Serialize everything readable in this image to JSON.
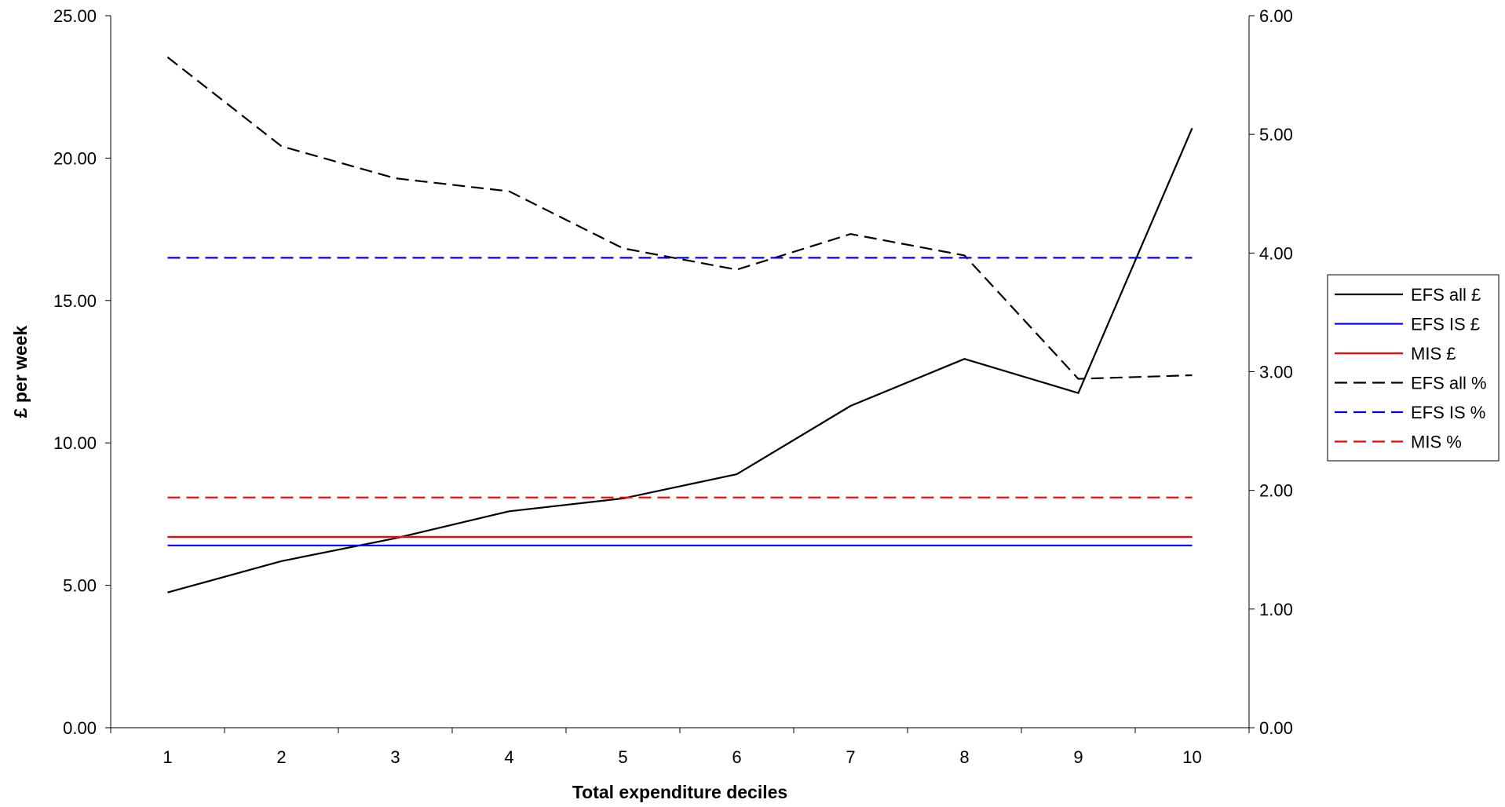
{
  "chart_data": {
    "type": "line",
    "xlabel": "Total expenditure deciles",
    "ylabel": "£ per week",
    "y2label": "",
    "categories": [
      "1",
      "2",
      "3",
      "4",
      "5",
      "6",
      "7",
      "8",
      "9",
      "10"
    ],
    "ylim": [
      0,
      25
    ],
    "y2lim": [
      0,
      6
    ],
    "yticks": [
      "0.00",
      "5.00",
      "10.00",
      "15.00",
      "20.00",
      "25.00"
    ],
    "y2ticks": [
      "0.00",
      "1.00",
      "2.00",
      "3.00",
      "4.00",
      "5.00",
      "6.00"
    ],
    "grid": false,
    "legend_position": "right",
    "series": [
      {
        "name": "EFS all £",
        "axis": "left",
        "color": "#000000",
        "dash": "solid",
        "values": [
          4.75,
          5.85,
          6.65,
          7.6,
          8.05,
          8.9,
          11.3,
          12.95,
          11.75,
          21.05
        ]
      },
      {
        "name": "EFS IS £",
        "axis": "left",
        "color": "#0000ff",
        "dash": "solid",
        "values": [
          6.4,
          6.4,
          6.4,
          6.4,
          6.4,
          6.4,
          6.4,
          6.4,
          6.4,
          6.4
        ]
      },
      {
        "name": "MIS £",
        "axis": "left",
        "color": "#ff0000",
        "dash": "solid",
        "values": [
          6.7,
          6.7,
          6.7,
          6.7,
          6.7,
          6.7,
          6.7,
          6.7,
          6.7,
          6.7
        ]
      },
      {
        "name": "EFS all %",
        "axis": "right",
        "color": "#000000",
        "dash": "dashed",
        "values": [
          5.65,
          4.9,
          4.63,
          4.52,
          4.04,
          3.86,
          4.16,
          3.98,
          2.94,
          2.97
        ]
      },
      {
        "name": "EFS IS %",
        "axis": "right",
        "color": "#0000ff",
        "dash": "dashed",
        "values": [
          3.96,
          3.96,
          3.96,
          3.96,
          3.96,
          3.96,
          3.96,
          3.96,
          3.96,
          3.96
        ]
      },
      {
        "name": "MIS %",
        "axis": "right",
        "color": "#ff0000",
        "dash": "dashed",
        "values": [
          1.94,
          1.94,
          1.94,
          1.94,
          1.94,
          1.94,
          1.94,
          1.94,
          1.94,
          1.94
        ]
      }
    ]
  }
}
